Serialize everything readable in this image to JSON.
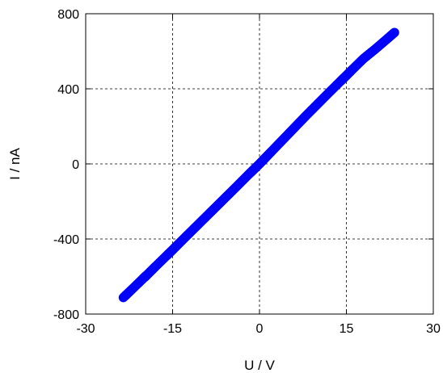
{
  "chart_data": {
    "type": "scatter",
    "title": "",
    "xlabel": "U / V",
    "ylabel": "I / nA",
    "xlim": [
      -30,
      30
    ],
    "ylim": [
      -800,
      800
    ],
    "x_ticks": [
      -30,
      -15,
      0,
      15,
      30
    ],
    "y_ticks": [
      -800,
      -400,
      0,
      400,
      800
    ],
    "x_tick_labels": [
      "-30",
      "-15",
      "0",
      "15",
      "30"
    ],
    "y_tick_labels": [
      "-800",
      "-400",
      "0",
      "400",
      "800"
    ],
    "grid": true,
    "legend": "none",
    "series": [
      {
        "color": "#0000ff",
        "marker": "open-circle",
        "points": [
          [
            -23.5,
            -712
          ],
          [
            -22,
            -668
          ],
          [
            -20,
            -608
          ],
          [
            -19.5,
            -594
          ],
          [
            -18,
            -548
          ],
          [
            -16,
            -488
          ],
          [
            -15,
            -458
          ],
          [
            -14,
            -427
          ],
          [
            -12,
            -366
          ],
          [
            -10,
            -305
          ],
          [
            -8,
            -244
          ],
          [
            -6,
            -183
          ],
          [
            -4,
            -122
          ],
          [
            -2,
            -60
          ],
          [
            -1,
            -30
          ],
          [
            0,
            0
          ],
          [
            1,
            32
          ],
          [
            2,
            64
          ],
          [
            4,
            128
          ],
          [
            6,
            192
          ],
          [
            8,
            256
          ],
          [
            10,
            318
          ],
          [
            12,
            380
          ],
          [
            14,
            441
          ],
          [
            15,
            471
          ],
          [
            16,
            502
          ],
          [
            18,
            562
          ],
          [
            20,
            612
          ],
          [
            22,
            665
          ],
          [
            23.3,
            700
          ]
        ]
      }
    ]
  }
}
